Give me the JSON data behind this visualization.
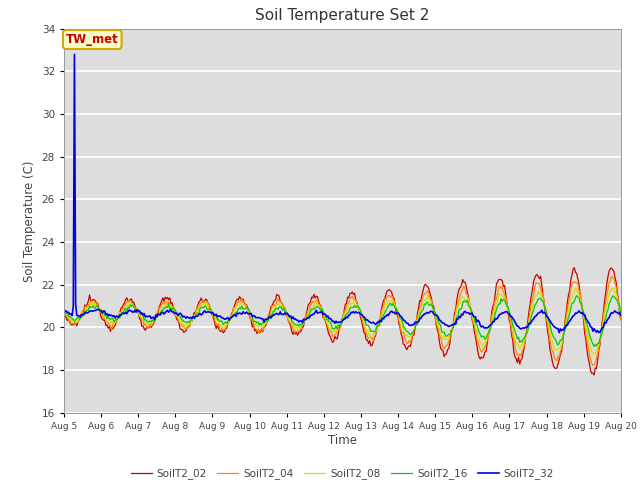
{
  "title": "Soil Temperature Set 2",
  "xlabel": "Time",
  "ylabel": "Soil Temperature (C)",
  "ylim": [
    16,
    34
  ],
  "yticks": [
    16,
    18,
    20,
    22,
    24,
    26,
    28,
    30,
    32,
    34
  ],
  "series_colors": {
    "SoilT2_02": "#cc0000",
    "SoilT2_04": "#ff8800",
    "SoilT2_08": "#dddd00",
    "SoilT2_16": "#00cc00",
    "SoilT2_32": "#0000ee"
  },
  "annotation_text": "TW_met",
  "annotation_bg": "#ffffcc",
  "annotation_border": "#ccaa00",
  "plot_bg": "#dddddd",
  "grid_color": "#ffffff",
  "tick_label_color": "#444444",
  "title_color": "#333333",
  "axis_label_color": "#444444",
  "legend_text_color": "#444444",
  "x_tick_labels": [
    "Aug 5",
    "Aug 6",
    "Aug 7",
    "Aug 8",
    "Aug 9",
    "Aug 10",
    "Aug 11",
    "Aug 12",
    "Aug 13",
    "Aug 14",
    "Aug 15",
    "Aug 16",
    "Aug 17",
    "Aug 18",
    "Aug 19",
    "Aug 20"
  ],
  "x_tick_positions": [
    5,
    6,
    7,
    8,
    9,
    10,
    11,
    12,
    13,
    14,
    15,
    16,
    17,
    18,
    19,
    20
  ]
}
